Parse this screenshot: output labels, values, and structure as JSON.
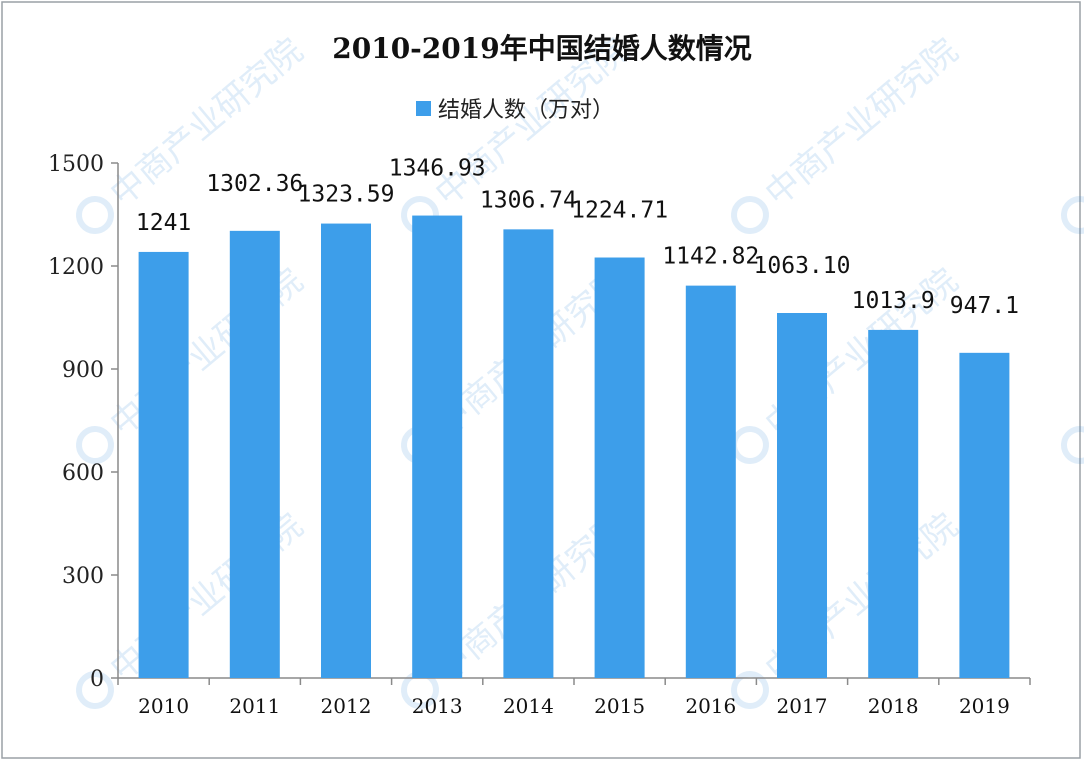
{
  "chart_data": {
    "type": "bar",
    "title": "2010-2019年中国结婚人数情况",
    "categories": [
      "2010",
      "2011",
      "2012",
      "2013",
      "2014",
      "2015",
      "2016",
      "2017",
      "2018",
      "2019"
    ],
    "series": [
      {
        "name": "结婚人数（万对）",
        "values": [
          1241,
          1302.36,
          1323.59,
          1346.93,
          1306.74,
          1224.71,
          1142.82,
          1063.1,
          1013.9,
          947.1
        ],
        "labels": [
          "1241",
          "1302.36",
          "1323.59",
          "1346.93",
          "1306.74",
          "1224.71",
          "1142.82",
          "1063.10",
          "1013.9",
          "947.1"
        ]
      }
    ],
    "y_ticks": [
      "0",
      "300",
      "600",
      "900",
      "1200",
      "1500"
    ],
    "ylim": [
      0,
      1500
    ],
    "legend_position": "top-center",
    "grid": false,
    "bar_color": "#3d9eea",
    "watermark": "中商产业研究院"
  }
}
